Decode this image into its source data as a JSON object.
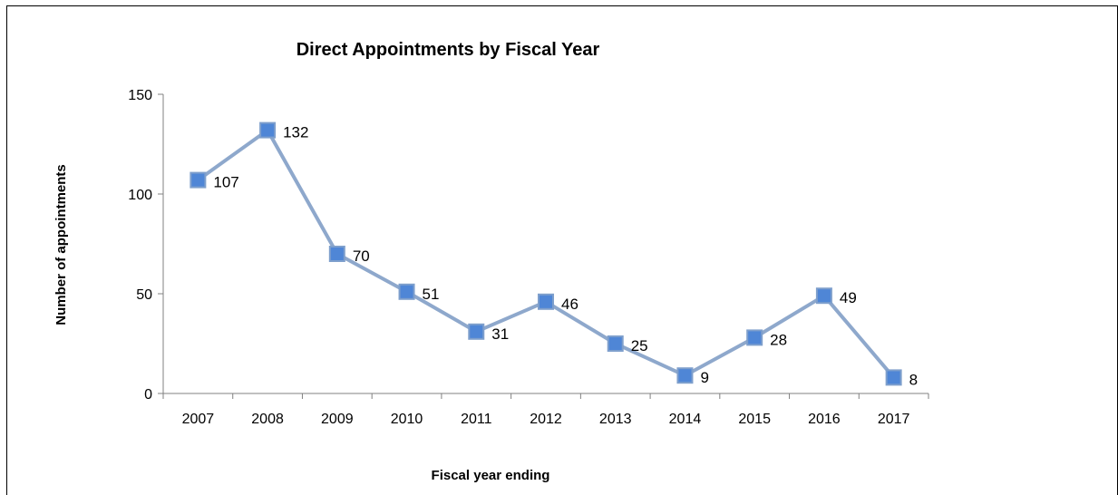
{
  "chart_data": {
    "type": "line",
    "title": "Direct Appointments by Fiscal Year",
    "xlabel": "Fiscal year ending",
    "ylabel": "Number of appointments",
    "categories": [
      "2007",
      "2008",
      "2009",
      "2010",
      "2011",
      "2012",
      "2013",
      "2014",
      "2015",
      "2016",
      "2017"
    ],
    "series": [
      {
        "values": [
          107,
          132,
          70,
          51,
          31,
          46,
          25,
          9,
          28,
          49,
          8
        ]
      }
    ],
    "ylim": [
      0,
      150
    ],
    "yticks": [
      0,
      50,
      100,
      150
    ],
    "grid": false,
    "legend": "none",
    "colors": {
      "line": "#8EA8CC",
      "marker_fill": "#4F86D6",
      "marker_border": "#7E9FCC"
    }
  }
}
